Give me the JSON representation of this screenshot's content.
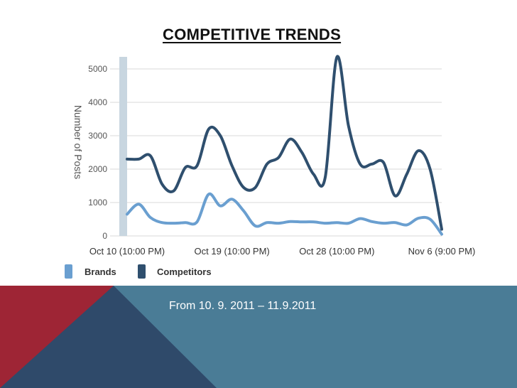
{
  "slide": {
    "title": "COMPETITIVE TRENDS",
    "footer_text": "From 10. 9. 2011 – 11.9.2011"
  },
  "colors": {
    "brands": "#6a9fd0",
    "competitors": "#2f4f6e",
    "footer_teal": "#4a7c96",
    "footer_navy": "#2f4a6a",
    "footer_red": "#9e2535",
    "grid": "#d9d9d9",
    "axis_bar": "#c8d6e0"
  },
  "chart_data": {
    "type": "line",
    "title": "",
    "xlabel": "",
    "ylabel": "Number of Posts",
    "ylim": [
      0,
      5000
    ],
    "yticks": [
      0,
      1000,
      2000,
      3000,
      4000,
      5000
    ],
    "xlim": [
      0,
      27
    ],
    "xtick_positions": [
      0,
      9,
      18,
      27
    ],
    "xtick_labels": [
      "Oct 10 (10:00 PM)",
      "Oct 19 (10:00 PM)",
      "Oct 28 (10:00 PM)",
      "Nov 6 (9:00 PM)"
    ],
    "grid": true,
    "legend_position": "bottom-left",
    "series": [
      {
        "name": "Brands",
        "color": "#6a9fd0",
        "x": [
          0,
          1,
          2,
          3,
          4,
          5,
          6,
          7,
          8,
          9,
          10,
          11,
          12,
          13,
          14,
          15,
          16,
          17,
          18,
          19,
          20,
          21,
          22,
          23,
          24,
          25,
          26,
          27
        ],
        "values": [
          650,
          950,
          550,
          400,
          380,
          400,
          420,
          1250,
          900,
          1100,
          750,
          300,
          400,
          380,
          430,
          420,
          420,
          380,
          400,
          380,
          520,
          430,
          380,
          400,
          330,
          530,
          500,
          50
        ]
      },
      {
        "name": "Competitors",
        "color": "#2f4f6e",
        "x": [
          0,
          1,
          2,
          3,
          4,
          5,
          6,
          7,
          8,
          9,
          10,
          11,
          12,
          13,
          14,
          15,
          16,
          17,
          18,
          19,
          20,
          21,
          22,
          23,
          24,
          25,
          26,
          27
        ],
        "values": [
          2300,
          2300,
          2400,
          1550,
          1350,
          2050,
          2100,
          3200,
          3000,
          2100,
          1450,
          1450,
          2150,
          2350,
          2900,
          2500,
          1850,
          1750,
          5350,
          3300,
          2150,
          2150,
          2200,
          1200,
          1850,
          2550,
          2000,
          200
        ]
      }
    ]
  }
}
